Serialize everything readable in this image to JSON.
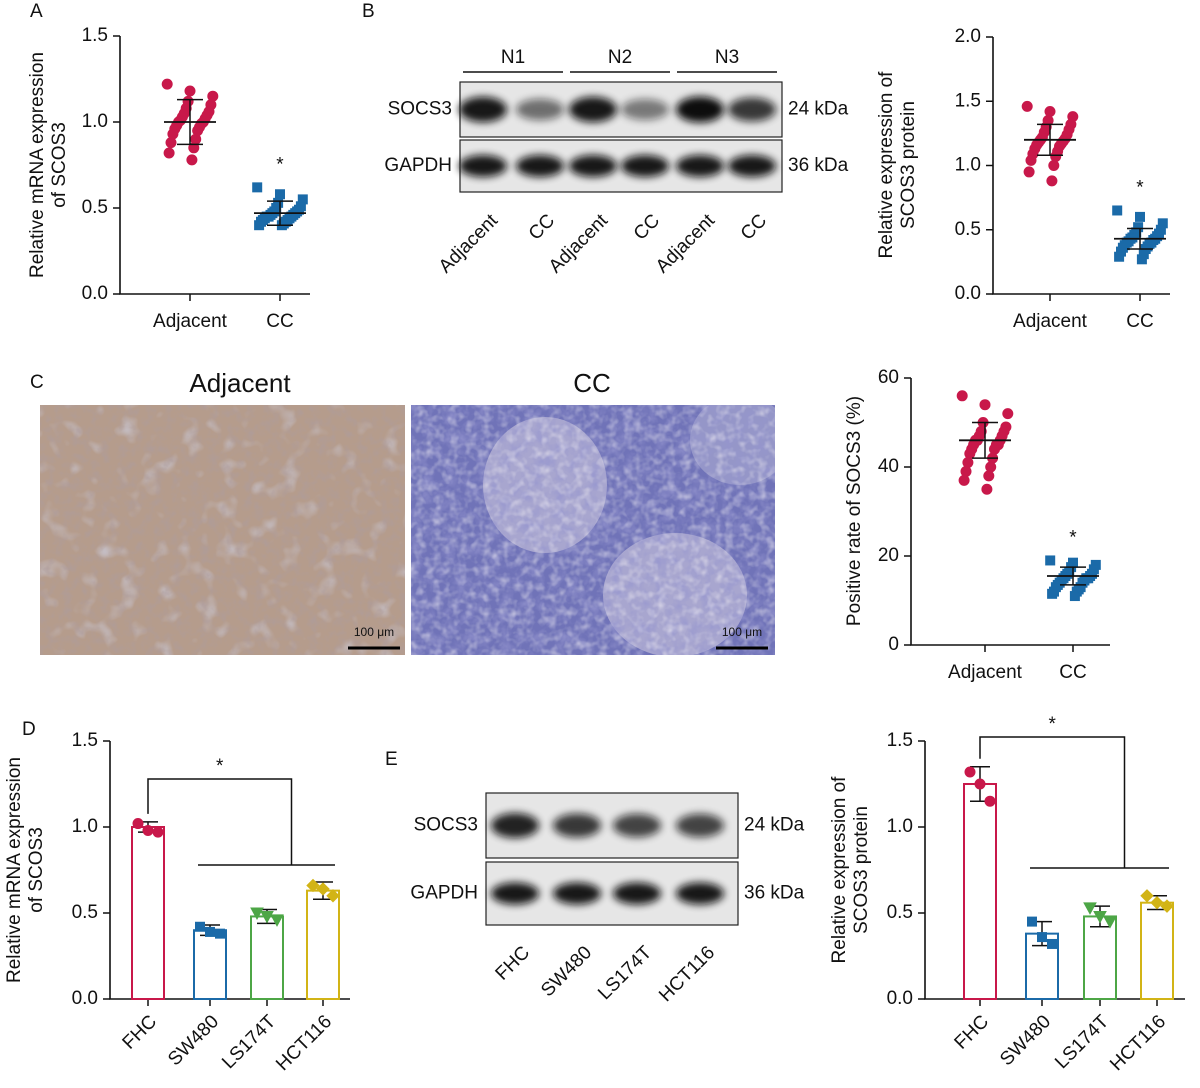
{
  "panel_labels": [
    "A",
    "B",
    "C",
    "D",
    "E"
  ],
  "blot_b": {
    "groups": [
      "N1",
      "N2",
      "N3"
    ],
    "lanes": [
      "Adjacent",
      "CC",
      "Adjacent",
      "CC",
      "Adjacent",
      "CC"
    ],
    "rows": [
      {
        "name": "SOCS3",
        "size": "24 kDa"
      },
      {
        "name": "GAPDH",
        "size": "36 kDa"
      }
    ]
  },
  "histology": {
    "titles": [
      "Adjacent",
      "CC"
    ],
    "scale_bar": "100 μm"
  },
  "blot_e": {
    "lanes": [
      "FHC",
      "SW480",
      "LS174T",
      "HCT116"
    ],
    "rows": [
      {
        "name": "SOCS3",
        "size": "24 kDa"
      },
      {
        "name": "GAPDH",
        "size": "36 kDa"
      }
    ]
  },
  "chart_data": [
    {
      "type": "dot",
      "ylabel": [
        "Relative  mRNA expression",
        "of SCOS3"
      ],
      "categories": [
        "Adjacent",
        "CC"
      ],
      "colors": [
        "#c8184a",
        "#1b6aa8"
      ],
      "markers": [
        "circle",
        "square"
      ],
      "ylim": [
        0,
        1.5
      ],
      "yticks": [
        {
          "value": 0,
          "label": "0.0"
        },
        0.5,
        {
          "value": 1,
          "label": "1.0"
        },
        1.5
      ],
      "groups": [
        {
          "mean": 1.0,
          "sd": 0.13,
          "points": [
            1.22,
            1.18,
            1.15,
            1.12,
            1.1,
            1.08,
            1.06,
            1.05,
            1.04,
            1.03,
            1.02,
            1.01,
            1.0,
            1.0,
            0.99,
            0.98,
            0.97,
            0.96,
            0.95,
            0.93,
            0.9,
            0.88,
            0.85,
            0.82,
            0.78
          ]
        },
        {
          "mean": 0.47,
          "sd": 0.07,
          "points": [
            0.62,
            0.58,
            0.55,
            0.53,
            0.51,
            0.5,
            0.49,
            0.48,
            0.48,
            0.47,
            0.47,
            0.46,
            0.46,
            0.45,
            0.45,
            0.45,
            0.44,
            0.44,
            0.43,
            0.43,
            0.42,
            0.42,
            0.41,
            0.4,
            0.4
          ]
        }
      ],
      "annotation": "*"
    },
    {
      "type": "dot",
      "ylabel": [
        "Relative expression of",
        "SCOS3 protein"
      ],
      "categories": [
        "Adjacent",
        "CC"
      ],
      "colors": [
        "#c8184a",
        "#1b6aa8"
      ],
      "markers": [
        "circle",
        "square"
      ],
      "ylim": [
        0,
        2
      ],
      "yticks": [
        {
          "value": 0,
          "label": "0.0"
        },
        0.5,
        {
          "value": 1,
          "label": "1.0"
        },
        1.5,
        {
          "value": 2,
          "label": "2.0"
        }
      ],
      "groups": [
        {
          "mean": 1.2,
          "sd": 0.12,
          "points": [
            1.46,
            1.42,
            1.38,
            1.35,
            1.32,
            1.3,
            1.28,
            1.26,
            1.24,
            1.22,
            1.21,
            1.2,
            1.19,
            1.18,
            1.17,
            1.16,
            1.15,
            1.13,
            1.11,
            1.09,
            1.07,
            1.04,
            1.0,
            0.95,
            0.88
          ]
        },
        {
          "mean": 0.43,
          "sd": 0.08,
          "points": [
            0.65,
            0.6,
            0.55,
            0.52,
            0.5,
            0.48,
            0.47,
            0.46,
            0.45,
            0.44,
            0.43,
            0.43,
            0.42,
            0.41,
            0.4,
            0.4,
            0.39,
            0.38,
            0.37,
            0.36,
            0.35,
            0.33,
            0.31,
            0.29,
            0.27
          ]
        }
      ],
      "annotation": "*"
    },
    {
      "type": "dot",
      "ylabel": [
        "Positive rate of SOCS3 (%)"
      ],
      "categories": [
        "Adjacent",
        "CC"
      ],
      "colors": [
        "#c8184a",
        "#1b6aa8"
      ],
      "markers": [
        "circle",
        "square"
      ],
      "ylim": [
        0,
        60
      ],
      "yticks": [
        0,
        20,
        40,
        60
      ],
      "groups": [
        {
          "mean": 46,
          "sd": 4,
          "points": [
            56,
            54,
            52,
            50,
            49,
            48,
            48,
            47,
            47,
            46,
            46,
            46,
            45,
            45,
            45,
            44,
            44,
            43,
            42,
            41,
            40,
            39,
            38,
            37,
            35
          ]
        },
        {
          "mean": 15.5,
          "sd": 2,
          "points": [
            19,
            18.5,
            18,
            17.5,
            17,
            16.5,
            16,
            16,
            15.5,
            15.5,
            15,
            15,
            15,
            14.5,
            14.5,
            14,
            14,
            13.5,
            13,
            13,
            12.5,
            12,
            12,
            11.5,
            11
          ]
        }
      ],
      "annotation": "*"
    },
    {
      "type": "bar",
      "ylabel": [
        "Relative mRNA expression",
        "of  SCOS3"
      ],
      "categories": [
        "FHC",
        "SW480",
        "LS174T",
        "HCT116"
      ],
      "colors": [
        "#c8184a",
        "#1b6aa8",
        "#4da646",
        "#d2b416"
      ],
      "markers": [
        "circle",
        "square",
        "triangle-down",
        "diamond"
      ],
      "ylim": [
        0,
        1.5
      ],
      "yticks": [
        {
          "value": 0,
          "label": "0.0"
        },
        0.5,
        {
          "value": 1,
          "label": "1.0"
        },
        1.5
      ],
      "values": [
        1.0,
        0.4,
        0.48,
        0.63
      ],
      "sd": [
        0.03,
        0.03,
        0.04,
        0.05
      ],
      "points": [
        [
          1.02,
          0.98,
          0.97
        ],
        [
          0.42,
          0.39,
          0.38
        ],
        [
          0.5,
          0.48,
          0.46
        ],
        [
          0.66,
          0.64,
          0.6
        ]
      ],
      "annotation": "*"
    },
    {
      "type": "bar",
      "ylabel": [
        "Relative expression of",
        "SCOS3 protein"
      ],
      "categories": [
        "FHC",
        "SW480",
        "LS174T",
        "HCT116"
      ],
      "colors": [
        "#c8184a",
        "#1b6aa8",
        "#4da646",
        "#d2b416"
      ],
      "markers": [
        "circle",
        "square",
        "triangle-down",
        "diamond"
      ],
      "ylim": [
        0,
        1.5
      ],
      "yticks": [
        {
          "value": 0,
          "label": "0.0"
        },
        0.5,
        {
          "value": 1,
          "label": "1.0"
        },
        1.5
      ],
      "values": [
        1.25,
        0.38,
        0.48,
        0.56
      ],
      "sd": [
        0.1,
        0.07,
        0.06,
        0.04
      ],
      "points": [
        [
          1.32,
          1.25,
          1.15
        ],
        [
          0.45,
          0.36,
          0.32
        ],
        [
          0.53,
          0.48,
          0.45
        ],
        [
          0.6,
          0.56,
          0.54
        ]
      ],
      "annotation": "*"
    }
  ]
}
